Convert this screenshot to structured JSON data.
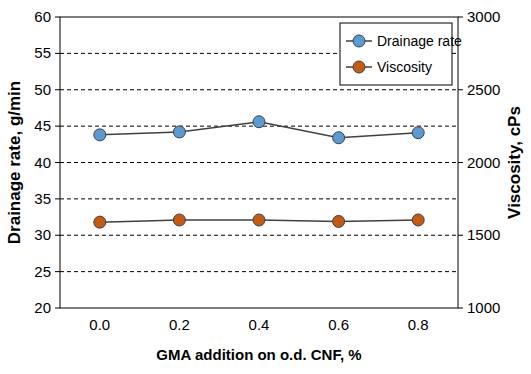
{
  "chart_data": {
    "type": "line",
    "x_label": "GMA addition on o.d. CNF, %",
    "y_label": "Drainage rate, g/min",
    "y2_label": "Viscosity, cPs",
    "categories": [
      "0.0",
      "0.2",
      "0.4",
      "0.6",
      "0.8"
    ],
    "series": [
      {
        "name": "Drainage rate",
        "color": "#5b9bd5",
        "marker": "circle",
        "values": [
          43.8,
          44.2,
          45.6,
          43.4,
          44.1
        ]
      },
      {
        "name": "Viscosity",
        "color": "#c55a11",
        "marker": "circle",
        "axis": "y2",
        "values": [
          1590,
          1605,
          1605,
          1595,
          1605
        ]
      }
    ],
    "ylim": [
      20,
      60
    ],
    "yticks": [
      20,
      25,
      30,
      35,
      40,
      45,
      50,
      55,
      60
    ],
    "y2lim": [
      1000,
      3000
    ],
    "y2ticks": [
      1000,
      1500,
      2000,
      2500,
      3000
    ],
    "grid": true,
    "legend": "top-right"
  }
}
